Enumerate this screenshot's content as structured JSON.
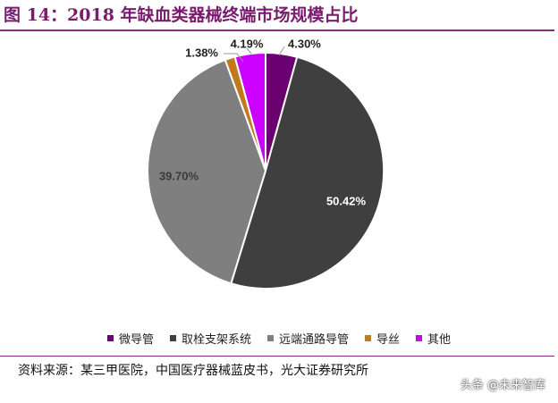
{
  "title": "图 14：2018 年缺血类器械终端市场规模占比",
  "source": "资料来源：某三甲医院，中国医疗器械蓝皮书，光大证券研究所",
  "watermark": "头条 @未来智库",
  "chart_data": {
    "type": "pie",
    "title": "图 14：2018 年缺血类器械终端市场规模占比",
    "legend_position": "bottom",
    "slices": [
      {
        "name": "微导管",
        "value": 4.3,
        "label": "4.30%",
        "color": "#6b0070"
      },
      {
        "name": "取栓支架系统",
        "value": 50.42,
        "label": "50.42%",
        "color": "#3f3f3f"
      },
      {
        "name": "远端通路导管",
        "value": 39.7,
        "label": "39.70%",
        "color": "#7f7f7f"
      },
      {
        "name": "导丝",
        "value": 1.38,
        "label": "1.38%",
        "color": "#c07a1e"
      },
      {
        "name": "其他",
        "value": 4.19,
        "label": "4.19%",
        "color": "#cc00ff"
      }
    ]
  }
}
